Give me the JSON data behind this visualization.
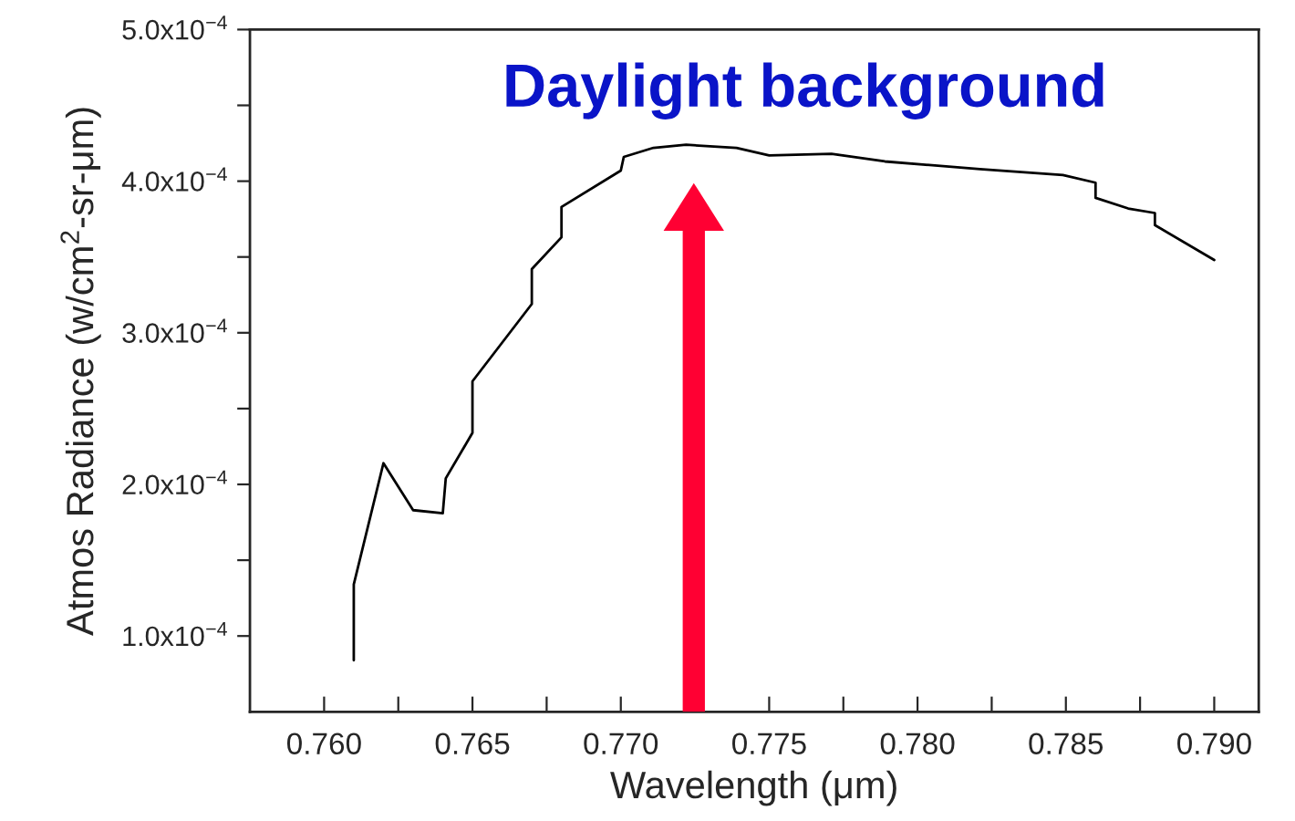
{
  "chart_data": {
    "type": "line",
    "xlabel": "Wavelength (μm)",
    "ylabel": "Atmos Radiance (w/cm$^{2}$-sr-μm)",
    "annotations": [
      "Daylight background"
    ],
    "series": [
      {
        "color": "#000000",
        "x": [
          0.761,
          0.761,
          0.762,
          0.763,
          0.764,
          0.7641,
          0.765,
          0.765,
          0.767,
          0.767,
          0.768,
          0.768,
          0.77,
          0.7701,
          0.7711,
          0.7722,
          0.7739,
          0.775,
          0.7771,
          0.7789,
          0.7821,
          0.7849,
          0.786,
          0.786,
          0.7871,
          0.788,
          0.788,
          0.79
        ],
        "values": [
          8.4e-05,
          0.000134,
          0.000214,
          0.000183,
          0.000181,
          0.000204,
          0.000234,
          0.000268,
          0.000319,
          0.000342,
          0.000363,
          0.000383,
          0.000407,
          0.000416,
          0.000422,
          0.000424,
          0.000422,
          0.000417,
          0.000418,
          0.000413,
          0.000408,
          0.000404,
          0.000399,
          0.000389,
          0.000382,
          0.000379,
          0.000371,
          0.000348
        ]
      }
    ],
    "xlim": [
      0.7575,
      0.7915
    ],
    "xticks": [
      {
        "value": 0.76,
        "label": "0.760"
      },
      {
        "value": 0.7625,
        "label": null
      },
      0.765,
      {
        "value": 0.7675,
        "label": null
      },
      {
        "value": 0.77,
        "label": "0.770"
      },
      {
        "value": 0.7725,
        "label": null
      },
      0.775,
      {
        "value": 0.7775,
        "label": null
      },
      {
        "value": 0.78,
        "label": "0.780"
      },
      {
        "value": 0.7825,
        "label": null
      },
      0.785,
      {
        "value": 0.7875,
        "label": null
      },
      {
        "value": 0.79,
        "label": "0.790"
      }
    ],
    "ylim": [
      5e-05,
      0.0005
    ],
    "yticks": [
      {
        "value": 0.0001,
        "label": "1.0x10$^{−4}$"
      },
      {
        "value": 0.00015,
        "label": null
      },
      {
        "value": 0.0002,
        "label": "2.0x10$^{−4}$"
      },
      {
        "value": 0.00025,
        "label": null
      },
      {
        "value": 0.0003,
        "label": "3.0x10$^{−4}$"
      },
      {
        "value": 0.00035,
        "label": null
      },
      {
        "value": 0.0004,
        "label": "4.0x10$^{−4}$"
      },
      {
        "value": 0.00045,
        "label": null
      },
      {
        "value": 0.0005,
        "label": "5.0x10$^{−4}$"
      }
    ],
    "grid": false,
    "legend": false,
    "marker": "none",
    "line_style": "solid"
  }
}
